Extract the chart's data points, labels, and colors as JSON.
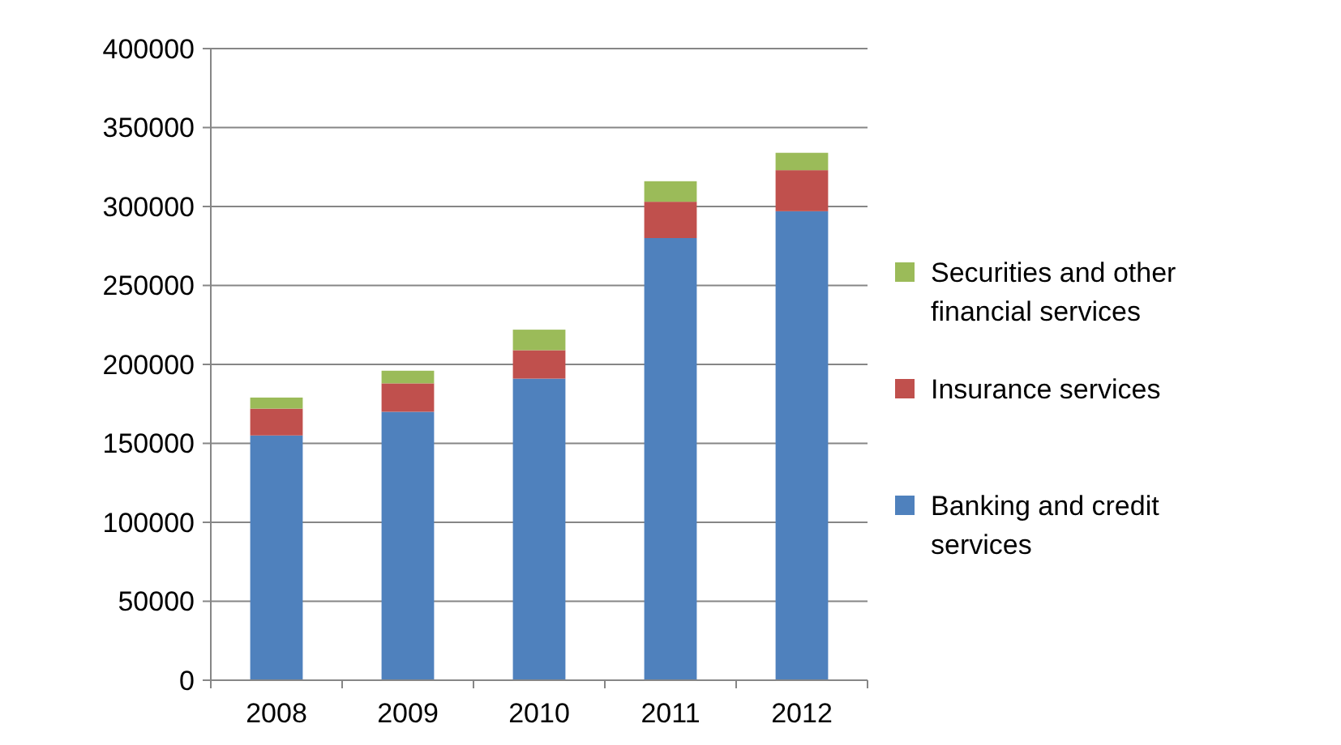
{
  "chart_data": {
    "type": "bar",
    "stacked": true,
    "categories": [
      "2008",
      "2009",
      "2010",
      "2011",
      "2012"
    ],
    "series": [
      {
        "name": "Banking and credit services",
        "color": "#4f81bd",
        "values": [
          155000,
          170000,
          191000,
          280000,
          297000
        ]
      },
      {
        "name": "Insurance services",
        "color": "#c0504d",
        "values": [
          17000,
          18000,
          18000,
          23000,
          26000
        ]
      },
      {
        "name": "Securities and other financial services",
        "color": "#9bbb59",
        "values": [
          7000,
          8000,
          13000,
          13000,
          11000
        ]
      }
    ],
    "ylim": [
      0,
      400000
    ],
    "yticks": [
      0,
      50000,
      100000,
      150000,
      200000,
      250000,
      300000,
      350000,
      400000
    ],
    "grid": "y",
    "legend": "right"
  }
}
